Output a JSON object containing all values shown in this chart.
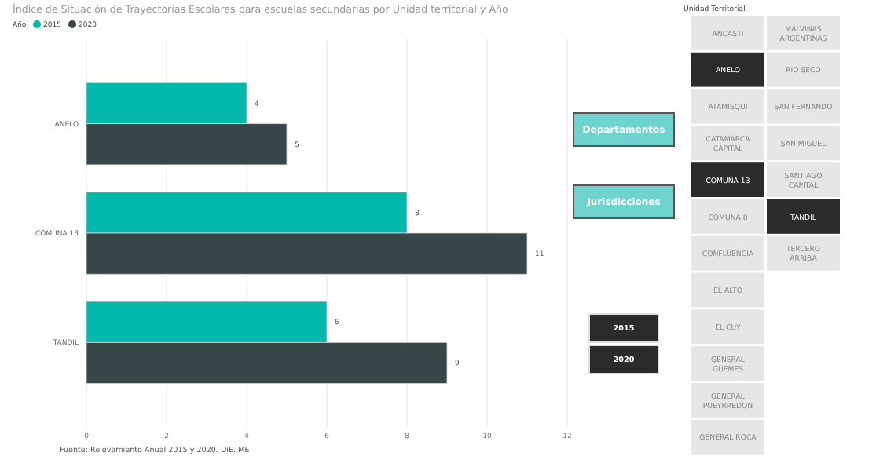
{
  "chart_data": [
    {
      "type": "bar",
      "orientation": "horizontal",
      "title": "Índice de Situación de Trayectorias Escolares para escuelas secundarias  por Unidad territorial y Año",
      "legend_title": "Año",
      "legend": "top left",
      "categories": [
        "ANELO",
        "COMUNA 13",
        "TANDIL"
      ],
      "series": [
        {
          "name": "2015",
          "color": "#01b8aa",
          "values": [
            4,
            8,
            6
          ]
        },
        {
          "name": "2020",
          "color": "#374649",
          "values": [
            5,
            11,
            9
          ]
        }
      ],
      "xlim": [
        0,
        12
      ],
      "xticks": [
        0,
        2,
        4,
        6,
        8,
        10,
        12
      ],
      "grid": "x",
      "data_labels": true,
      "annotations": [
        "Fuente: Relevamiento Anual 2015 y 2020. DiE. ME"
      ]
    },
    {
      "type": "other",
      "categories": [
        "Departamentos",
        "Jurisdicciones",
        "2015",
        "2020"
      ],
      "colors": [
        "#6fd4cf",
        "#6fd4cf",
        "#2b2b2b",
        "#2b2b2b"
      ]
    },
    {
      "type": "other",
      "title": "Unidad Territorial",
      "categories": [
        "ANCASTI",
        "ANELO",
        "ATAMISQUI",
        "CATAMARCA CAPITAL",
        "COMUNA 13",
        "COMUNA 8",
        "CONFLUENCIA",
        "EL ALTO",
        "EL CUY",
        "GENERAL GUEMES",
        "GENERAL PUEYRREDON",
        "GENERAL ROCA",
        "MALVINAS ARGENTINAS",
        "RIO SECO",
        "SAN FERNANDO",
        "SAN MIGUEL",
        "SANTIAGO CAPITAL",
        "TANDIL",
        "TERCERO ARRIBA"
      ],
      "colors": [
        "#e6e6e6",
        "#2b2b2b",
        "#e6e6e6",
        "#e6e6e6",
        "#2b2b2b",
        "#e6e6e6",
        "#e6e6e6",
        "#e6e6e6",
        "#e6e6e6",
        "#e6e6e6",
        "#e6e6e6",
        "#e6e6e6",
        "#e6e6e6",
        "#e6e6e6",
        "#e6e6e6",
        "#e6e6e6",
        "#e6e6e6",
        "#2b2b2b",
        "#e6e6e6"
      ]
    }
  ]
}
